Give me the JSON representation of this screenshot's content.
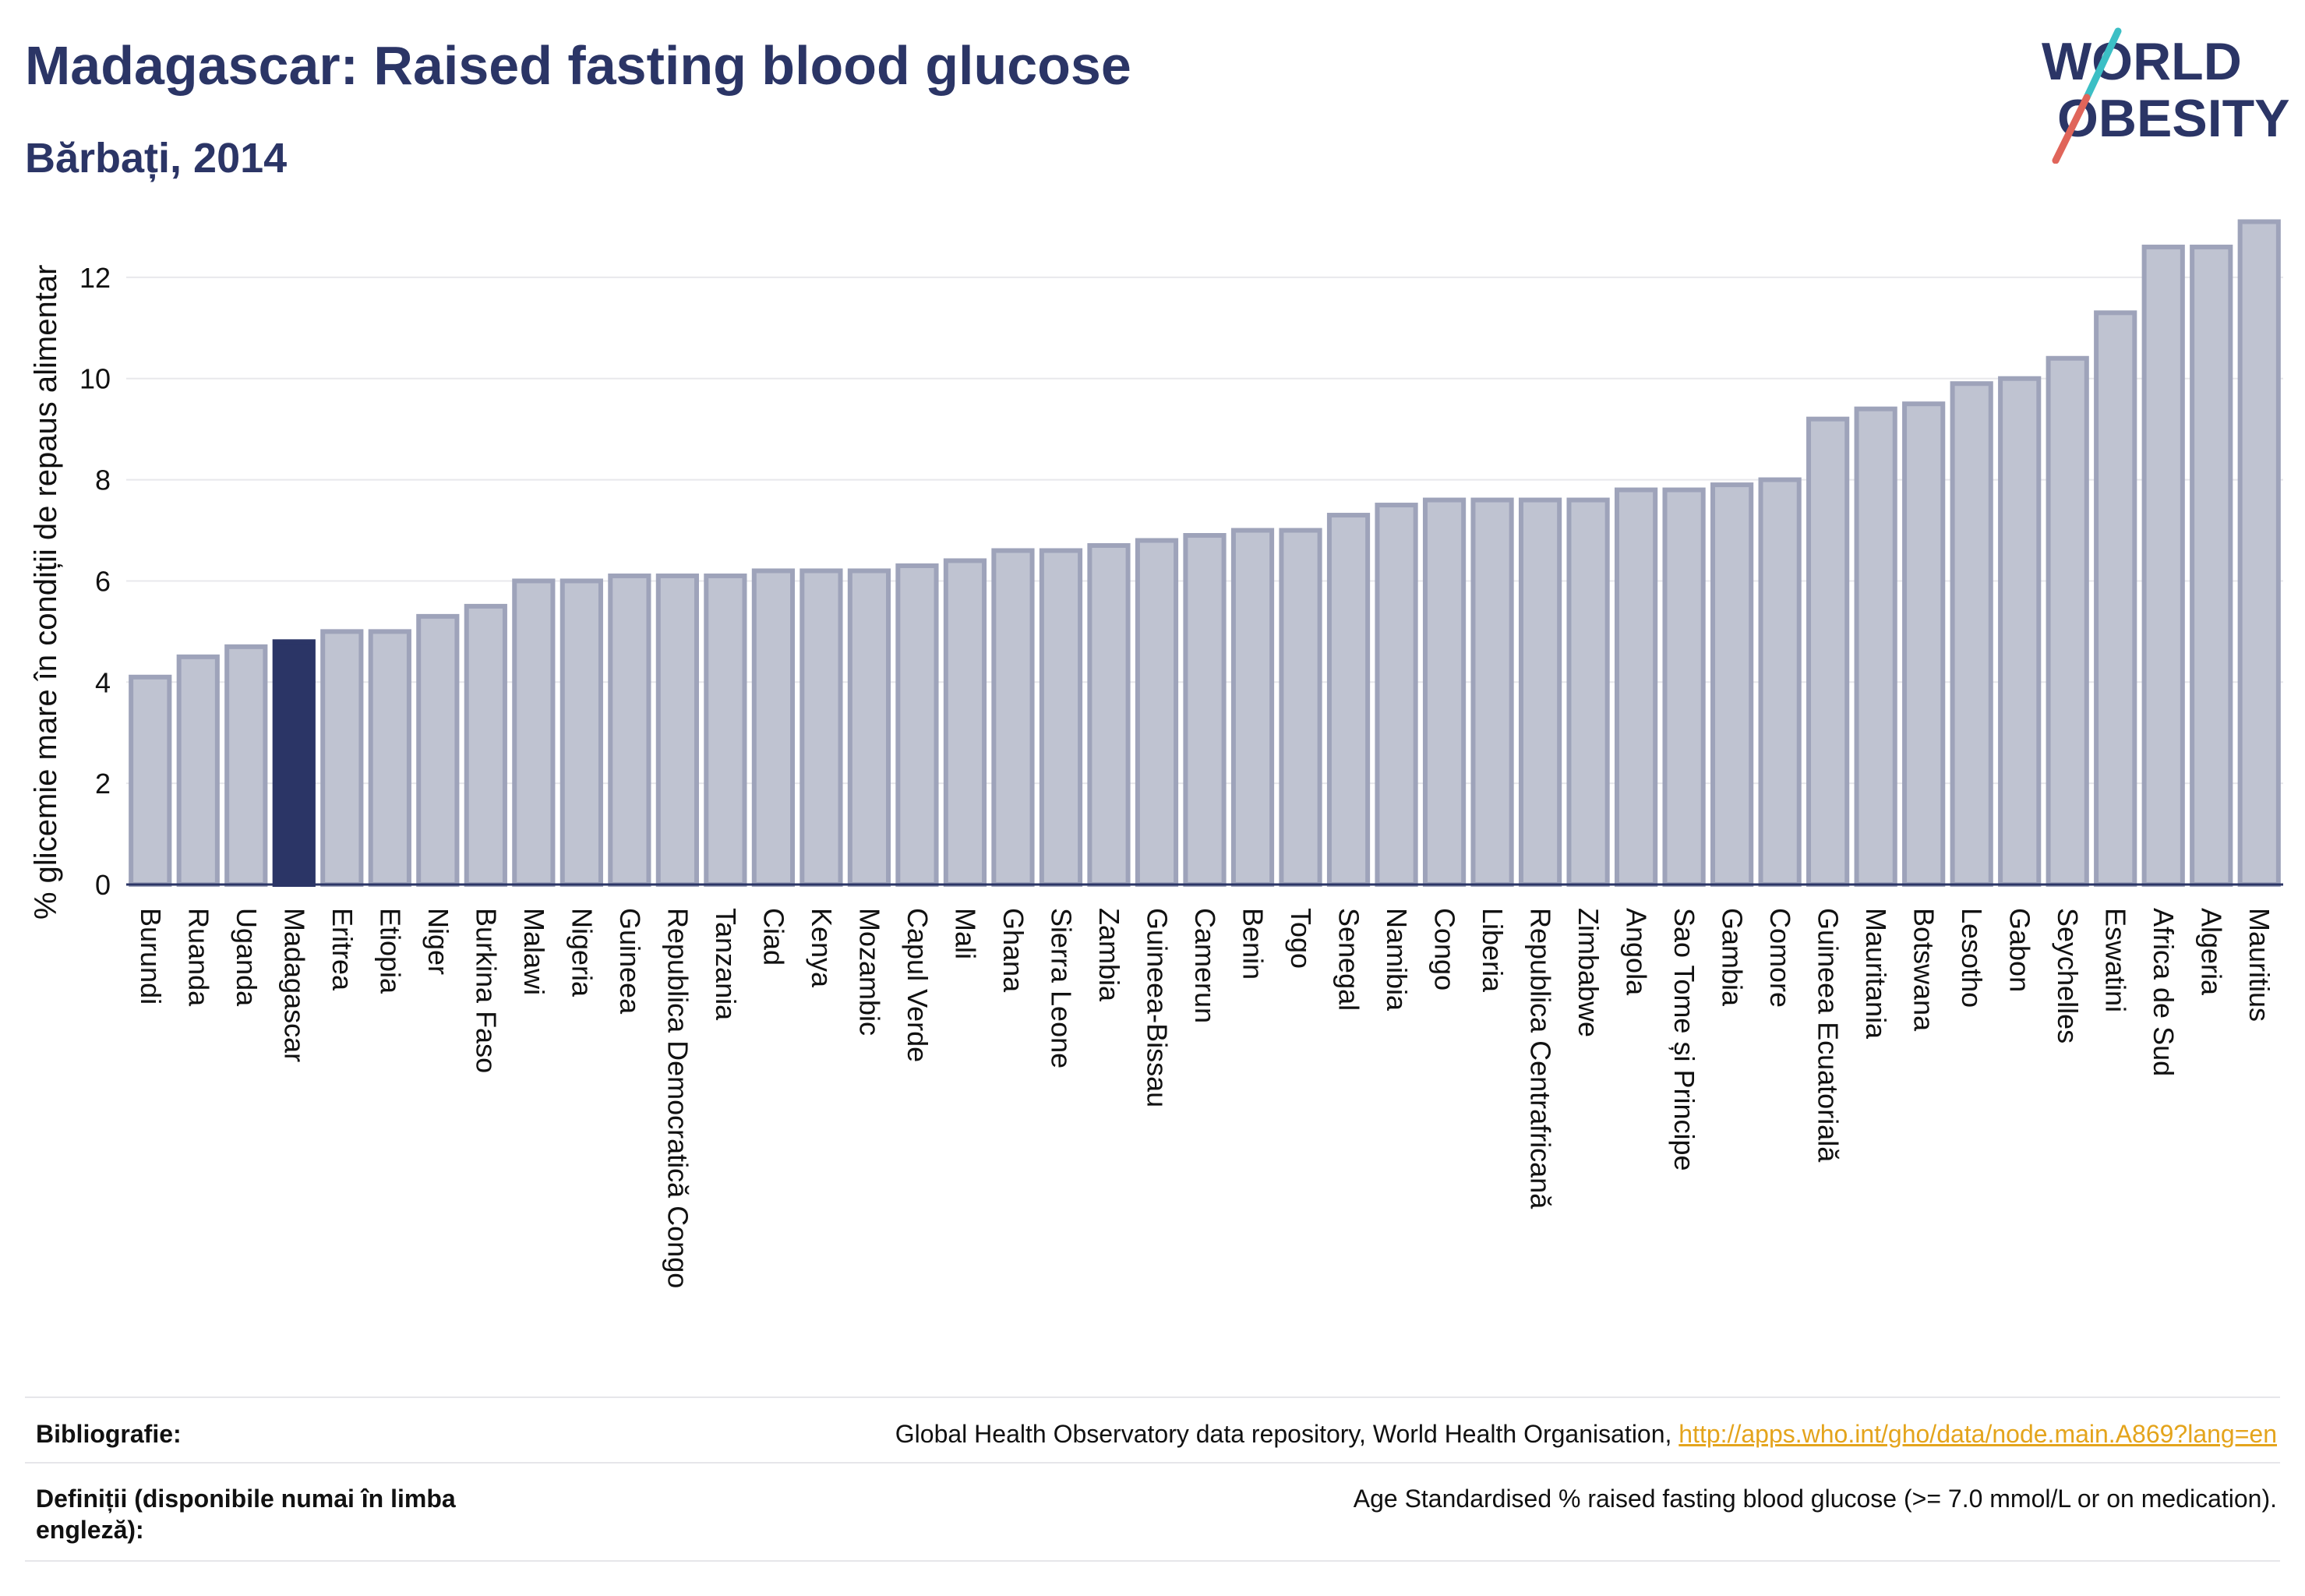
{
  "header": {
    "title": "Madagascar: Raised fasting blood glucose",
    "subtitle": "Bărbați, 2014"
  },
  "logo": {
    "line1": "WORLD",
    "line2": "OBESITY"
  },
  "chart_data": {
    "type": "bar",
    "title": "Madagascar: Raised fasting blood glucose",
    "subtitle": "Bărbați, 2014",
    "ylabel": "% glicemie mare în condiții de repaus alimentar",
    "xlabel": "",
    "ylim": [
      0,
      13.6
    ],
    "yticks": [
      0,
      2,
      4,
      6,
      8,
      10,
      12
    ],
    "grid": true,
    "highlight": "Madagascar",
    "colors": {
      "bar": "#bfc3d1",
      "bar_edge": "#9ea3ba",
      "highlight": "#2b3566",
      "grid": "#e8e8ec"
    },
    "categories": [
      "Burundi",
      "Ruanda",
      "Uganda",
      "Madagascar",
      "Eritrea",
      "Etiopia",
      "Niger",
      "Burkina Faso",
      "Malawi",
      "Nigeria",
      "Guineea",
      "Republica Democratică Congo",
      "Tanzania",
      "Ciad",
      "Kenya",
      "Mozambic",
      "Capul Verde",
      "Mali",
      "Ghana",
      "Sierra Leone",
      "Zambia",
      "Guineea-Bissau",
      "Camerun",
      "Benin",
      "Togo",
      "Senegal",
      "Namibia",
      "Congo",
      "Liberia",
      "Republica Centrafricană",
      "Zimbabwe",
      "Angola",
      "Sao Tome și Principe",
      "Gambia",
      "Comore",
      "Guineea Ecuatorială",
      "Mauritania",
      "Botswana",
      "Lesotho",
      "Gabon",
      "Seychelles",
      "Eswatini",
      "Africa de Sud",
      "Algeria",
      "Mauritius"
    ],
    "values": [
      4.1,
      4.5,
      4.7,
      4.8,
      5.0,
      5.0,
      5.3,
      5.5,
      6.0,
      6.0,
      6.1,
      6.1,
      6.1,
      6.2,
      6.2,
      6.2,
      6.3,
      6.4,
      6.6,
      6.6,
      6.7,
      6.8,
      6.9,
      7.0,
      7.0,
      7.3,
      7.5,
      7.6,
      7.6,
      7.6,
      7.6,
      7.8,
      7.8,
      7.9,
      8.0,
      9.2,
      9.4,
      9.5,
      9.9,
      10.0,
      10.4,
      11.3,
      12.6,
      12.6,
      13.1
    ]
  },
  "footer": {
    "bibliography_label": "Bibliografie:",
    "bibliography_text": "Global Health Observatory data repository, World Health Organisation, ",
    "bibliography_link": "http://apps.who.int/gho/data/node.main.A869?lang=en",
    "definitions_label": "Definiții (disponibile numai în limba engleză):",
    "definitions_text": "Age Standardised % raised fasting blood glucose (>= 7.0 mmol/L or on medication)."
  }
}
